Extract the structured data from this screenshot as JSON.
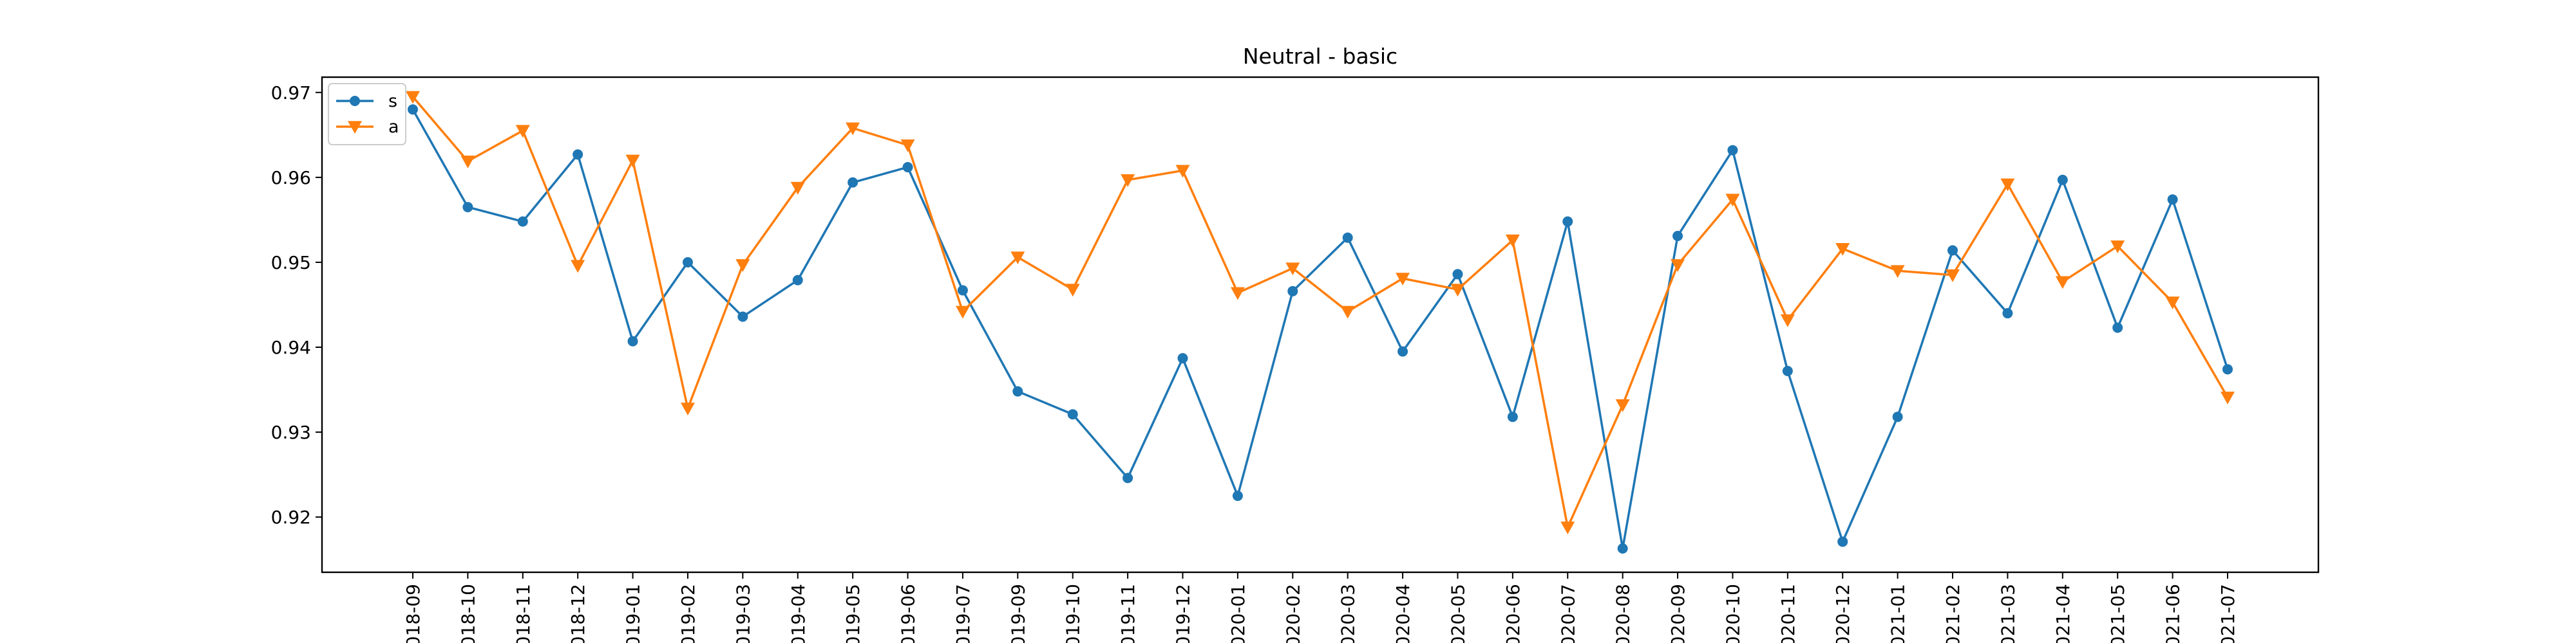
{
  "chart_data": {
    "type": "line",
    "title": "Neutral - basic",
    "xlabel": "",
    "ylabel": "",
    "categories": [
      "2018-09",
      "2018-10",
      "2018-11",
      "2018-12",
      "2019-01",
      "2019-02",
      "2019-03",
      "2019-04",
      "2019-05",
      "2019-06",
      "2019-07",
      "2019-09",
      "2019-10",
      "2019-11",
      "2019-12",
      "2020-01",
      "2020-02",
      "2020-03",
      "2020-04",
      "2020-05",
      "2020-06",
      "2020-07",
      "2020-08",
      "2020-09",
      "2020-10",
      "2020-11",
      "2020-12",
      "2021-01",
      "2021-02",
      "2021-03",
      "2021-04",
      "2021-05",
      "2021-06",
      "2021-07"
    ],
    "ylim": [
      0.9135,
      0.9718
    ],
    "yticks": [
      0.92,
      0.93,
      0.94,
      0.95,
      0.96,
      0.97
    ],
    "ytick_labels": [
      "0.92",
      "0.93",
      "0.94",
      "0.95",
      "0.96",
      "0.97"
    ],
    "grid": false,
    "legend_position": "top-left",
    "series": [
      {
        "name": "s",
        "color": "#1f77b4",
        "marker": "circle",
        "values": [
          0.968,
          0.9565,
          0.9548,
          0.9627,
          0.9407,
          0.95,
          0.9436,
          0.9479,
          0.9594,
          0.9612,
          0.9467,
          0.9348,
          0.9321,
          0.9246,
          0.9387,
          0.9225,
          0.9466,
          0.9529,
          0.9395,
          0.9486,
          0.9318,
          0.9548,
          0.9163,
          0.9531,
          0.9632,
          0.9372,
          0.9171,
          0.9318,
          0.9514,
          0.944,
          0.9597,
          0.9423,
          0.9574,
          0.9374
        ]
      },
      {
        "name": "a",
        "color": "#ff7f0e",
        "marker": "triangle-down",
        "values": [
          0.9695,
          0.9619,
          0.9655,
          0.9496,
          0.962,
          0.9328,
          0.9497,
          0.9588,
          0.9658,
          0.9638,
          0.9442,
          0.9506,
          0.9468,
          0.9597,
          0.9608,
          0.9464,
          0.9493,
          0.9442,
          0.9481,
          0.9468,
          0.9526,
          0.9188,
          0.9332,
          0.9497,
          0.9574,
          0.9432,
          0.9516,
          0.949,
          0.9485,
          0.9592,
          0.9477,
          0.9519,
          0.9453,
          0.9341
        ]
      }
    ]
  }
}
